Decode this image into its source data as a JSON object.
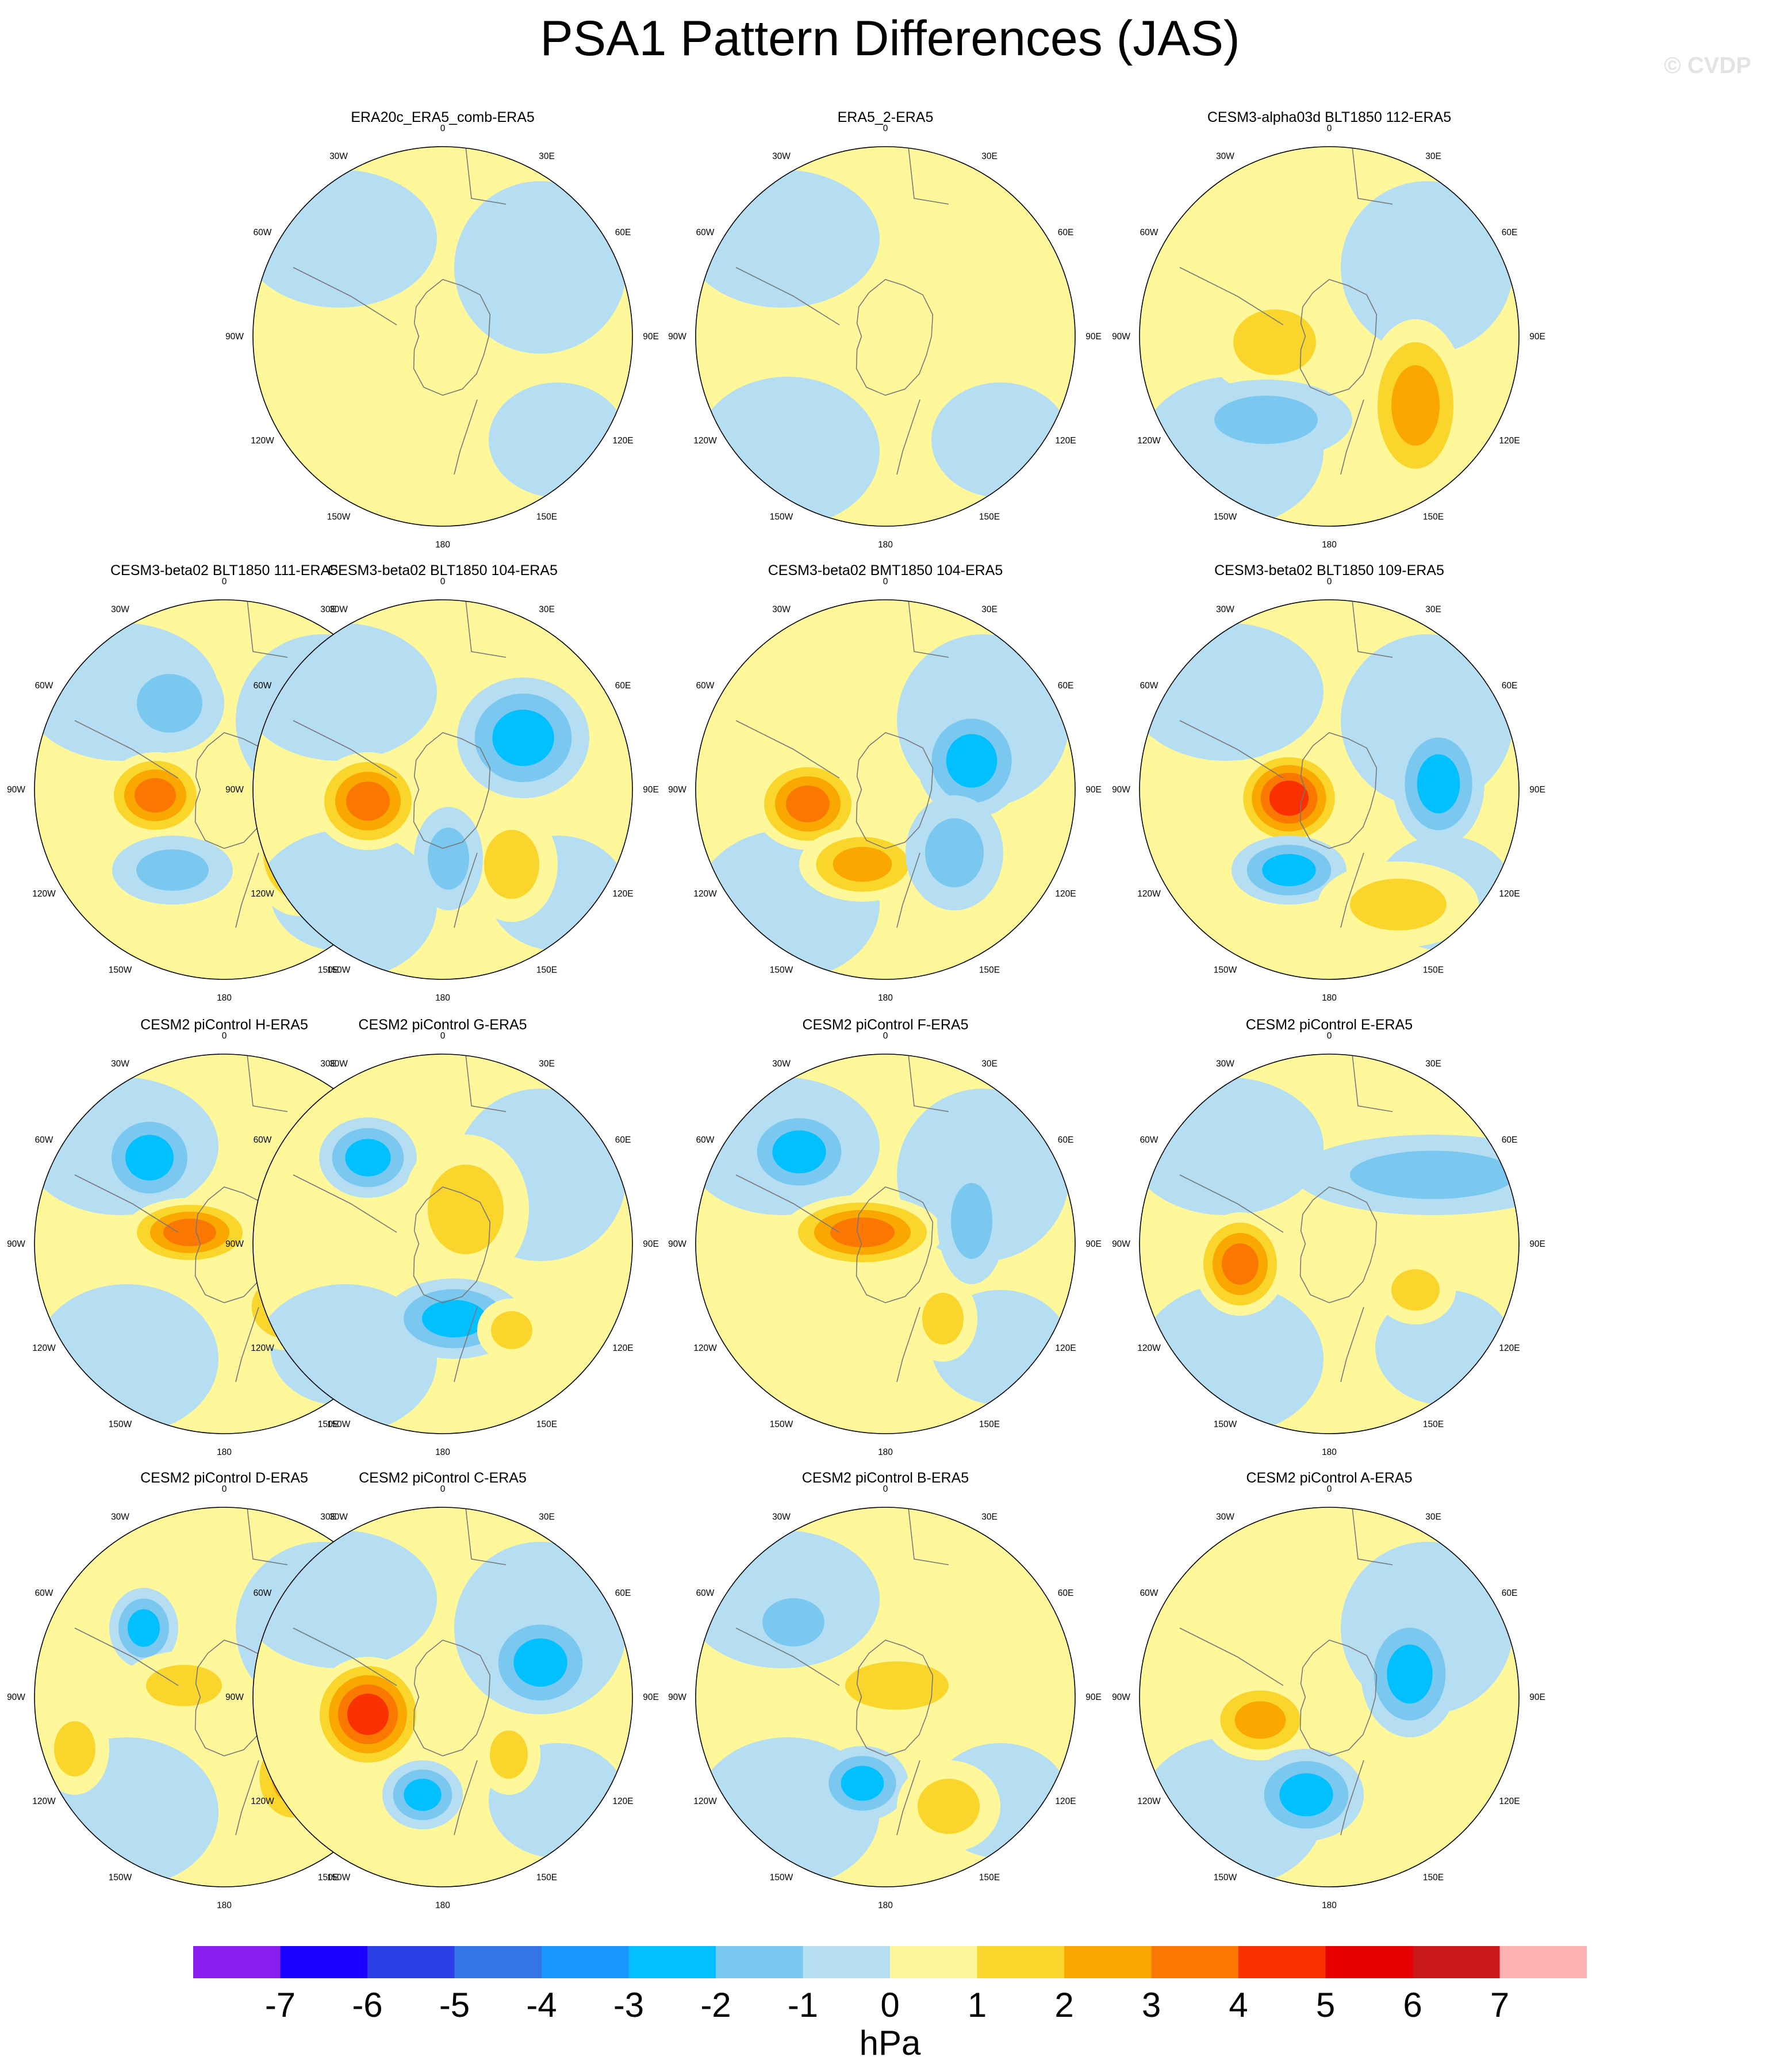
{
  "title": "PSA1 Pattern Differences (JAS)",
  "watermark": "© CVDP",
  "units": "hPa",
  "lon_labels": [
    "0",
    "30E",
    "60E",
    "90E",
    "120E",
    "150E",
    "180",
    "150W",
    "120W",
    "90W",
    "60W",
    "30W"
  ],
  "colorbar": {
    "ticks": [
      "-7",
      "-6",
      "-5",
      "-4",
      "-3",
      "-2",
      "-1",
      "0",
      "1",
      "2",
      "3",
      "4",
      "5",
      "6",
      "7"
    ],
    "colors": [
      "#8a1cf0",
      "#1a00ff",
      "#2b3fe6",
      "#3573e8",
      "#1c96ff",
      "#00c0ff",
      "#7ac8f0",
      "#b5def2",
      "#fff89a",
      "#fad62c",
      "#faa800",
      "#fa7800",
      "#fa3000",
      "#e80000",
      "#c81818",
      "#ffb0b0"
    ]
  },
  "panels": [
    {
      "title": "ERA20c_ERA5_comb-ERA5",
      "blobs": []
    },
    {
      "title": "ERA5_2-ERA5",
      "blobs": []
    },
    {
      "title": "CESM3-alpha03d BLT1850 112-ERA5",
      "blobs": [
        {
          "type": "high",
          "level": 2
        },
        {
          "type": "low",
          "level": 2
        },
        {
          "type": "high",
          "level": 3
        }
      ]
    },
    {
      "title": "CESM3-beta02 BLT1850 111-ERA5",
      "blobs": [
        {
          "type": "low",
          "level": 2
        },
        {
          "type": "high",
          "level": 4
        },
        {
          "type": "low",
          "level": 2
        },
        {
          "type": "high",
          "level": 3
        }
      ]
    },
    {
      "title": "CESM3-beta02 BLT1850 104-ERA5",
      "blobs": [
        {
          "type": "high",
          "level": 4
        },
        {
          "type": "low",
          "level": 3
        },
        {
          "type": "high",
          "level": 2
        },
        {
          "type": "low",
          "level": 2
        }
      ]
    },
    {
      "title": "CESM3-beta02 BMT1850 104-ERA5",
      "blobs": [
        {
          "type": "high",
          "level": 4
        },
        {
          "type": "low",
          "level": 3
        },
        {
          "type": "high",
          "level": 3
        },
        {
          "type": "low",
          "level": 2
        }
      ]
    },
    {
      "title": "CESM3-beta02 BLT1850 109-ERA5",
      "blobs": [
        {
          "type": "high",
          "level": 5
        },
        {
          "type": "low",
          "level": 3
        },
        {
          "type": "low",
          "level": 3
        },
        {
          "type": "high",
          "level": 2
        }
      ]
    },
    {
      "title": "CESM2 piControl H-ERA5",
      "blobs": [
        {
          "type": "low",
          "level": 3
        },
        {
          "type": "high",
          "level": 4
        },
        {
          "type": "low",
          "level": 3
        },
        {
          "type": "high",
          "level": 3
        }
      ]
    },
    {
      "title": "CESM2 piControl G-ERA5",
      "blobs": [
        {
          "type": "low",
          "level": 3
        },
        {
          "type": "high",
          "level": 2
        },
        {
          "type": "low",
          "level": 3
        },
        {
          "type": "high",
          "level": 2
        }
      ]
    },
    {
      "title": "CESM2 piControl F-ERA5",
      "blobs": [
        {
          "type": "low",
          "level": 3
        },
        {
          "type": "high",
          "level": 4
        },
        {
          "type": "low",
          "level": 2
        },
        {
          "type": "high",
          "level": 2
        }
      ]
    },
    {
      "title": "CESM2 piControl E-ERA5",
      "blobs": [
        {
          "type": "high",
          "level": 4
        },
        {
          "type": "low",
          "level": 2
        },
        {
          "type": "high",
          "level": 2
        }
      ]
    },
    {
      "title": "CESM2 piControl D-ERA5",
      "blobs": [
        {
          "type": "low",
          "level": 3
        },
        {
          "type": "high",
          "level": 2
        },
        {
          "type": "high",
          "level": 3
        },
        {
          "type": "high",
          "level": 2
        }
      ]
    },
    {
      "title": "CESM2 piControl C-ERA5",
      "blobs": [
        {
          "type": "high",
          "level": 5
        },
        {
          "type": "low",
          "level": 3
        },
        {
          "type": "low",
          "level": 3
        },
        {
          "type": "high",
          "level": 2
        }
      ]
    },
    {
      "title": "CESM2 piControl B-ERA5",
      "blobs": [
        {
          "type": "low",
          "level": 2
        },
        {
          "type": "high",
          "level": 2
        },
        {
          "type": "low",
          "level": 3
        },
        {
          "type": "high",
          "level": 2
        }
      ]
    },
    {
      "title": "CESM2 piControl A-ERA5",
      "blobs": [
        {
          "type": "low",
          "level": 3
        },
        {
          "type": "high",
          "level": 3
        },
        {
          "type": "low",
          "level": 3
        }
      ]
    }
  ]
}
